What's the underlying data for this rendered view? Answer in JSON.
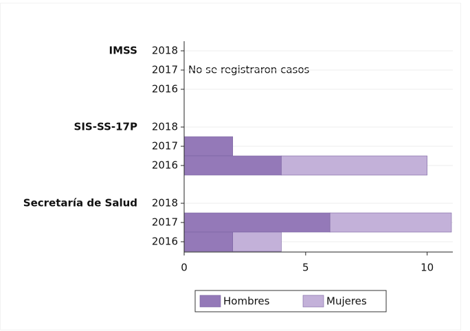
{
  "chart_data": {
    "type": "stacked_barh",
    "groups": [
      "IMSS",
      "SIS-SS-17P",
      "Secretaría de Salud"
    ],
    "categories": [
      "2018",
      "2017",
      "2016",
      "2018",
      "2017",
      "2016",
      "2018",
      "2017",
      "2016"
    ],
    "series": [
      {
        "name": "Hombres",
        "color": "#9479b8",
        "values": [
          null,
          null,
          null,
          0,
          2,
          4,
          0,
          6,
          2
        ]
      },
      {
        "name": "Mujeres",
        "color": "#c3b1d9",
        "values": [
          null,
          null,
          null,
          0,
          0,
          6,
          0,
          5,
          2
        ]
      }
    ],
    "annotation": "No se registraron casos",
    "xlim": [
      0,
      11
    ],
    "xticks": [
      0,
      5,
      10
    ],
    "grid": true,
    "legend": "bottom"
  }
}
